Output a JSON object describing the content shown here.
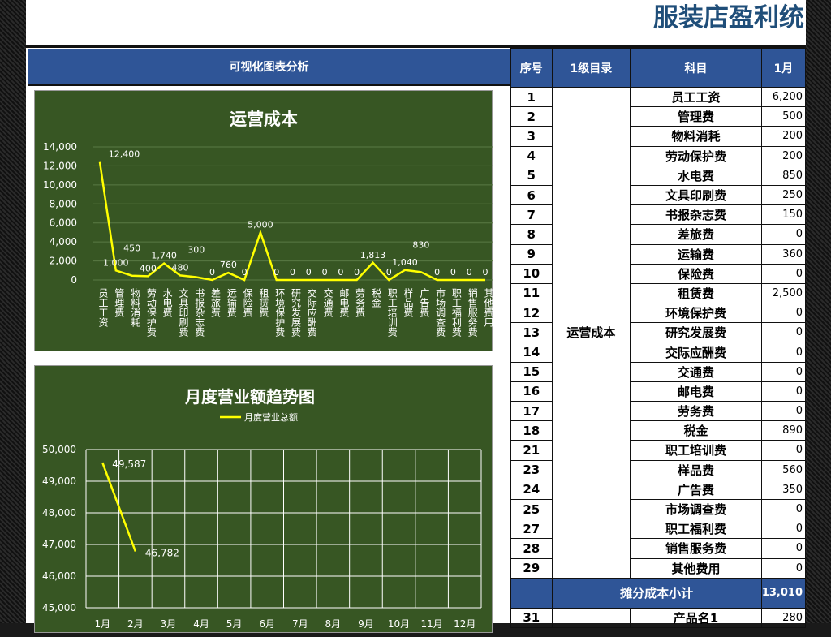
{
  "title": "服装店盈利统",
  "left_header": "可视化图表分析",
  "table": {
    "headers": [
      "序号",
      "1级目录",
      "科目",
      "1月"
    ],
    "category": "运营成本",
    "rows": [
      [
        "1",
        "员工工资",
        "6,200"
      ],
      [
        "2",
        "管理费",
        "500"
      ],
      [
        "3",
        "物料消耗",
        "200"
      ],
      [
        "4",
        "劳动保护费",
        "200"
      ],
      [
        "5",
        "水电费",
        "850"
      ],
      [
        "6",
        "文具印刷费",
        "250"
      ],
      [
        "7",
        "书报杂志费",
        "150"
      ],
      [
        "8",
        "差旅费",
        "0"
      ],
      [
        "9",
        "运输费",
        "360"
      ],
      [
        "10",
        "保险费",
        "0"
      ],
      [
        "11",
        "租赁费",
        "2,500"
      ],
      [
        "12",
        "环境保护费",
        "0"
      ],
      [
        "13",
        "研究发展费",
        "0"
      ],
      [
        "14",
        "交际应酬费",
        "0"
      ],
      [
        "15",
        "交通费",
        "0"
      ],
      [
        "16",
        "邮电费",
        "0"
      ],
      [
        "17",
        "劳务费",
        "0"
      ],
      [
        "18",
        "税金",
        "890"
      ],
      [
        "21",
        "职工培训费",
        "0"
      ],
      [
        "23",
        "样品费",
        "560"
      ],
      [
        "24",
        "广告费",
        "350"
      ],
      [
        "25",
        "市场调查费",
        "0"
      ],
      [
        "27",
        "职工福利费",
        "0"
      ],
      [
        "28",
        "销售服务费",
        "0"
      ],
      [
        "29",
        "其他费用",
        "0"
      ]
    ],
    "subtotal_label": "摊分成本小计",
    "subtotal_value": "13,010",
    "last_row": [
      "31",
      "产品名1",
      "280"
    ]
  },
  "chart_data": [
    {
      "type": "line",
      "title": "运营成本",
      "ylim": [
        0,
        14000
      ],
      "yticks": [
        "0",
        "2,000",
        "4,000",
        "6,000",
        "8,000",
        "10,000",
        "12,000",
        "14,000"
      ],
      "categories": [
        "员工工资",
        "管理费",
        "物料消耗",
        "劳动保护费",
        "水电费",
        "文具印刷费",
        "书报杂志费",
        "差旅费",
        "运输费",
        "保险费",
        "租赁费",
        "环境保护费",
        "研究发展费",
        "交际应酬费",
        "交通费",
        "邮电费",
        "劳务费",
        "税金",
        "职工培训费",
        "样品费",
        "广告费",
        "市场调查费",
        "职工福利费",
        "销售服务费",
        "其他费用"
      ],
      "values": [
        12400,
        1000,
        450,
        400,
        1740,
        480,
        300,
        0,
        760,
        0,
        5000,
        0,
        0,
        0,
        0,
        0,
        0,
        1813,
        0,
        1040,
        830,
        0,
        0,
        0,
        0
      ],
      "labels": [
        "12,400",
        "1,000",
        "450",
        "400",
        "1,740",
        "480",
        "300",
        "0",
        "760",
        "0",
        "5,000",
        "0",
        "0",
        "0",
        "0",
        "0",
        "0",
        "1,813",
        "0",
        "1,040",
        "830",
        "0",
        "0",
        "0",
        "0"
      ],
      "line_color": "#ffff00",
      "background": "#375623",
      "grid": true
    },
    {
      "type": "line",
      "title": "月度营业额趋势图",
      "legend": "月度营业总额",
      "legend_position": "top",
      "ylim": [
        45000,
        50000
      ],
      "yticks": [
        "45,000",
        "46,000",
        "47,000",
        "48,000",
        "49,000",
        "50,000"
      ],
      "categories": [
        "1月",
        "2月",
        "3月",
        "4月",
        "5月",
        "6月",
        "7月",
        "8月",
        "9月",
        "10月",
        "11月",
        "12月"
      ],
      "values": [
        49587,
        46782
      ],
      "labels": [
        "49,587",
        "46,782"
      ],
      "line_color": "#ffff00",
      "background": "#375623",
      "grid": true
    }
  ]
}
